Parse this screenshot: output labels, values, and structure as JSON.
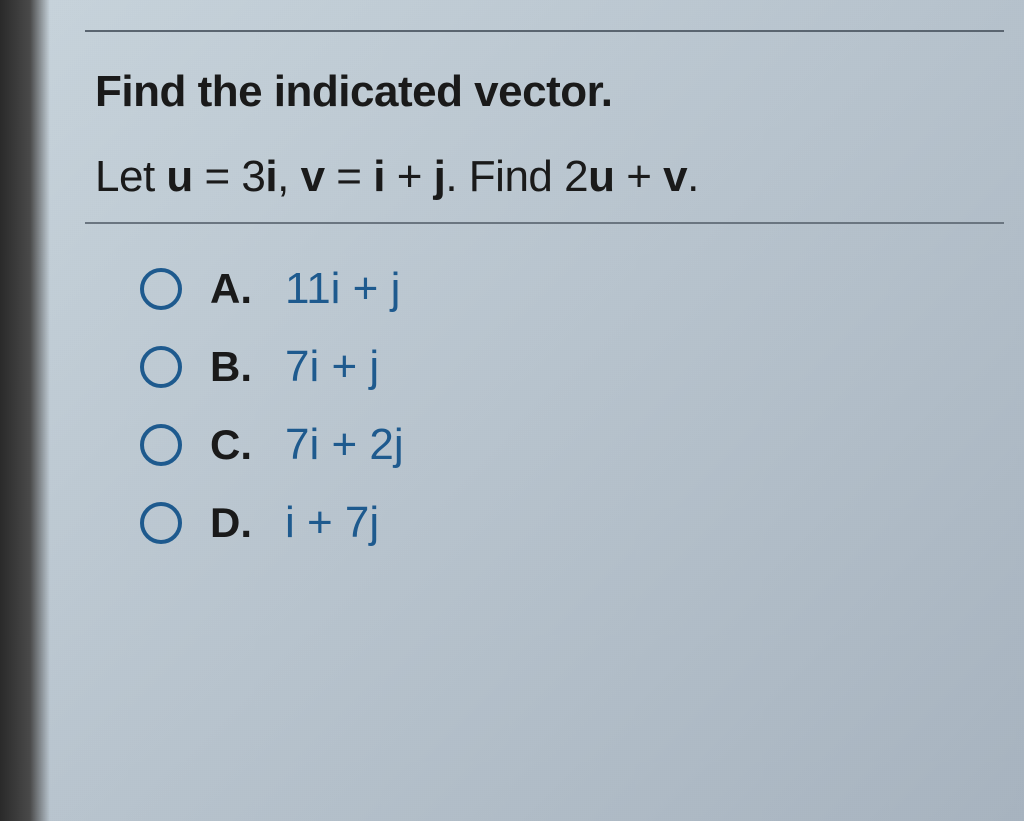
{
  "question": {
    "title": "Find the indicated vector.",
    "prompt_prefix": "Let ",
    "prompt_u": "u",
    "prompt_eq1": " = 3",
    "prompt_i1": "i",
    "prompt_comma": ", ",
    "prompt_v": "v",
    "prompt_eq2": " = ",
    "prompt_i2": "i",
    "prompt_plus": " + ",
    "prompt_j": "j",
    "prompt_period": ". Find 2",
    "prompt_u2": "u",
    "prompt_plus2": " + ",
    "prompt_v2": "v",
    "prompt_end": "."
  },
  "options": [
    {
      "label": "A.",
      "value": "11i + j"
    },
    {
      "label": "B.",
      "value": "7i + j"
    },
    {
      "label": "C.",
      "value": "7i + 2j"
    },
    {
      "label": "D.",
      "value": "i + 7j"
    }
  ],
  "styling": {
    "title_fontsize": 44,
    "option_fontsize": 44,
    "radio_border_color": "#1e5a8e",
    "option_value_color": "#1e5a8e",
    "text_color": "#1a1a1a",
    "background_gradient_start": "#c8d4dc",
    "background_gradient_end": "#a8b4c0",
    "divider_color": "#6a7580"
  }
}
